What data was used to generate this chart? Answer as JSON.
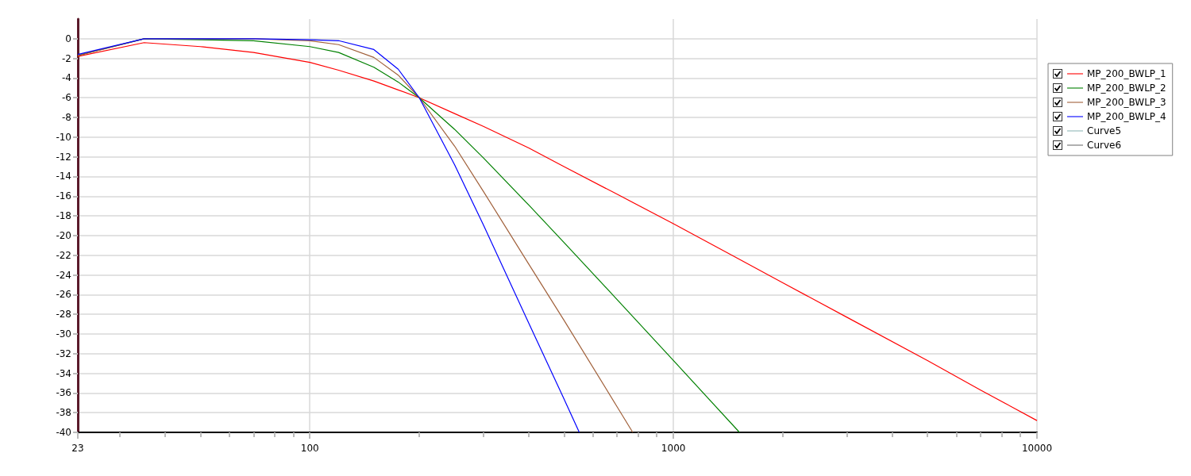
{
  "chart_data": {
    "type": "line",
    "log": "x",
    "xlim": [
      23,
      10000
    ],
    "ylim": [
      -40,
      2
    ],
    "xticks": [
      23,
      {
        "value": 30,
        "label": null
      },
      {
        "value": 40,
        "label": null
      },
      {
        "value": 50,
        "label": null
      },
      {
        "value": 60,
        "label": null
      },
      {
        "value": 70,
        "label": null
      },
      {
        "value": 80,
        "label": null
      },
      {
        "value": 90,
        "label": null
      },
      100,
      {
        "value": 200,
        "label": null
      },
      {
        "value": 300,
        "label": null
      },
      {
        "value": 400,
        "label": null
      },
      {
        "value": 500,
        "label": null
      },
      {
        "value": 600,
        "label": null
      },
      {
        "value": 700,
        "label": null
      },
      {
        "value": 800,
        "label": null
      },
      {
        "value": 900,
        "label": null
      },
      1000,
      {
        "value": 2000,
        "label": null
      },
      {
        "value": 3000,
        "label": null
      },
      {
        "value": 4000,
        "label": null
      },
      {
        "value": 5000,
        "label": null
      },
      {
        "value": 6000,
        "label": null
      },
      {
        "value": 7000,
        "label": null
      },
      {
        "value": 8000,
        "label": null
      },
      {
        "value": 9000,
        "label": null
      },
      10000
    ],
    "yticks": [
      -40,
      -38,
      -36,
      -34,
      -32,
      -30,
      -28,
      -26,
      -24,
      -22,
      -20,
      -18,
      -16,
      -14,
      -12,
      -10,
      -8,
      -6,
      -4,
      -2,
      0
    ],
    "grid": true,
    "legend": "right",
    "marker": "none",
    "line_style": "solid",
    "series": [
      {
        "name": "MP_200_BWLP_1",
        "color": "#ff0000",
        "x": [
          23,
          35,
          50,
          70,
          100,
          120,
          150,
          175,
          200,
          250,
          300,
          400,
          500,
          700,
          1000,
          1500,
          2000,
          3000,
          5000,
          7000,
          10000
        ],
        "values": [
          -1.8,
          -0.4,
          -0.8,
          -1.4,
          -2.4,
          -3.2,
          -4.3,
          -5.2,
          -6.0,
          -7.6,
          -8.9,
          -11.1,
          -13.0,
          -15.8,
          -18.8,
          -22.3,
          -24.8,
          -28.3,
          -32.7,
          -35.7,
          -38.8
        ]
      },
      {
        "name": "MP_200_BWLP_2",
        "color": "#008000",
        "x": [
          23,
          35,
          50,
          70,
          100,
          120,
          150,
          175,
          200,
          250,
          300,
          400,
          500,
          700,
          1000,
          1520
        ],
        "values": [
          -1.7,
          0.0,
          -0.1,
          -0.2,
          -0.8,
          -1.4,
          -2.9,
          -4.4,
          -6.0,
          -9.2,
          -12.1,
          -16.9,
          -20.7,
          -26.5,
          -32.7,
          -40.0
        ]
      },
      {
        "name": "MP_200_BWLP_3",
        "color": "#a0603a",
        "x": [
          23,
          35,
          50,
          70,
          100,
          120,
          150,
          175,
          200,
          250,
          300,
          400,
          500,
          700,
          773
        ],
        "values": [
          -1.7,
          0.0,
          0.0,
          0.0,
          -0.2,
          -0.6,
          -1.9,
          -3.7,
          -6.0,
          -10.9,
          -15.5,
          -22.9,
          -28.6,
          -37.4,
          -40.0
        ]
      },
      {
        "name": "MP_200_BWLP_4",
        "color": "#0000ff",
        "x": [
          23,
          35,
          70,
          100,
          120,
          150,
          175,
          200,
          250,
          300,
          400,
          500,
          551
        ],
        "values": [
          -1.6,
          0.0,
          0.0,
          -0.1,
          -0.2,
          -1.1,
          -3.1,
          -6.0,
          -12.8,
          -18.9,
          -28.9,
          -36.6,
          -40.0
        ]
      },
      {
        "name": "Curve5",
        "color": "#8fb8b8"
      },
      {
        "name": "Curve6",
        "color": "#707070"
      }
    ]
  }
}
